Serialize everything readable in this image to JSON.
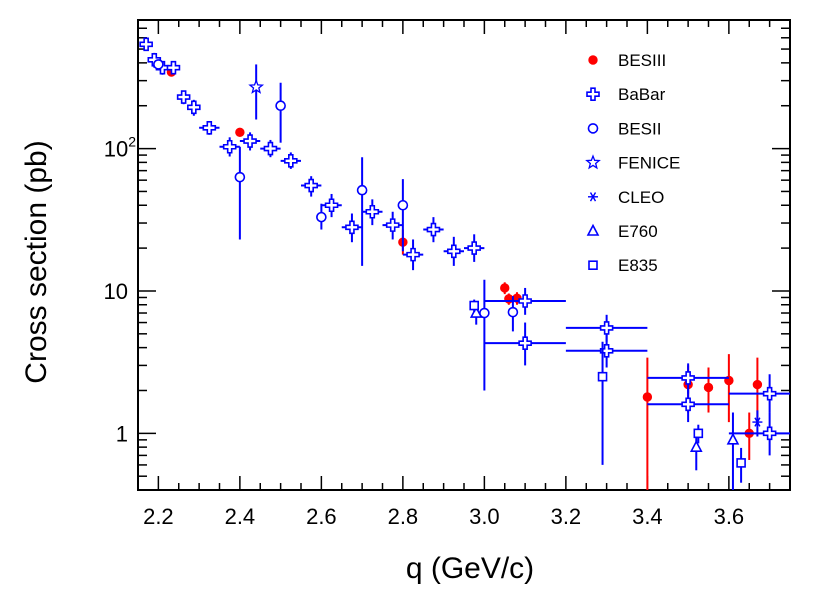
{
  "chart_data": {
    "type": "scatter",
    "title": "",
    "xlabel": "q (GeV/c)",
    "ylabel": "Cross section (pb)",
    "xlim": [
      2.15,
      3.75
    ],
    "ylim": [
      0.4,
      800
    ],
    "yscale": "log",
    "grid": false,
    "legend_position": "top-right",
    "x_ticks": [
      {
        "value": 2.2,
        "label": "2.2"
      },
      {
        "value": 2.4,
        "label": "2.4"
      },
      {
        "value": 2.6,
        "label": "2.6"
      },
      {
        "value": 2.8,
        "label": "2.8"
      },
      {
        "value": 3.0,
        "label": "3.0"
      },
      {
        "value": 3.2,
        "label": "3.2"
      },
      {
        "value": 3.4,
        "label": "3.4"
      },
      {
        "value": 3.6,
        "label": "3.6"
      }
    ],
    "y_ticks": [
      {
        "value": 1,
        "label": "1",
        "sup": ""
      },
      {
        "value": 10,
        "label": "10",
        "sup": ""
      },
      {
        "value": 100,
        "label": "10",
        "sup": "2"
      }
    ],
    "series": [
      {
        "name": "BESIII",
        "marker": "filled-circle",
        "color": "#ff0000",
        "points": [
          {
            "x": 2.232,
            "y": 345,
            "ylo": 330,
            "yhi": 360
          },
          {
            "x": 2.4,
            "y": 130,
            "ylo": 123,
            "yhi": 137
          },
          {
            "x": 2.8,
            "y": 22,
            "ylo": 18,
            "yhi": 27
          },
          {
            "x": 3.05,
            "y": 10.5,
            "ylo": 9.5,
            "yhi": 11.5
          },
          {
            "x": 3.06,
            "y": 8.8,
            "ylo": 8.0,
            "yhi": 9.6
          },
          {
            "x": 3.08,
            "y": 8.9,
            "ylo": 8.0,
            "yhi": 9.8
          },
          {
            "x": 3.4,
            "y": 1.8,
            "ylo": 0.4,
            "yhi": 3.4
          },
          {
            "x": 3.5,
            "y": 2.2,
            "ylo": 1.4,
            "yhi": 3.0
          },
          {
            "x": 3.55,
            "y": 2.1,
            "ylo": 1.4,
            "yhi": 2.9
          },
          {
            "x": 3.6,
            "y": 2.35,
            "ylo": 1.2,
            "yhi": 3.6
          },
          {
            "x": 3.65,
            "y": 1.0,
            "ylo": 0.65,
            "yhi": 1.4
          },
          {
            "x": 3.67,
            "y": 2.2,
            "ylo": 1.2,
            "yhi": 3.4
          }
        ]
      },
      {
        "name": "BaBar",
        "marker": "open-cross",
        "color": "#0000ff",
        "points": [
          {
            "x": 2.17,
            "y": 540,
            "xlo": 2.16,
            "xhi": 2.18,
            "ylo": 500,
            "yhi": 580
          },
          {
            "x": 2.19,
            "y": 420,
            "xlo": 2.18,
            "xhi": 2.2,
            "ylo": 370,
            "yhi": 470
          },
          {
            "x": 2.21,
            "y": 370,
            "xlo": 2.2,
            "xhi": 2.22,
            "ylo": 330,
            "yhi": 410
          },
          {
            "x": 2.237,
            "y": 370,
            "xlo": 2.225,
            "xhi": 2.25,
            "ylo": 340,
            "yhi": 400
          },
          {
            "x": 2.262,
            "y": 230,
            "xlo": 2.25,
            "xhi": 2.275,
            "ylo": 205,
            "yhi": 255
          },
          {
            "x": 2.287,
            "y": 195,
            "xlo": 2.275,
            "xhi": 2.3,
            "ylo": 170,
            "yhi": 220
          },
          {
            "x": 2.325,
            "y": 140,
            "xlo": 2.3,
            "xhi": 2.35,
            "ylo": 125,
            "yhi": 155
          },
          {
            "x": 2.375,
            "y": 103,
            "xlo": 2.35,
            "xhi": 2.4,
            "ylo": 88,
            "yhi": 120
          },
          {
            "x": 2.425,
            "y": 113,
            "xlo": 2.4,
            "xhi": 2.45,
            "ylo": 97,
            "yhi": 130
          },
          {
            "x": 2.475,
            "y": 100,
            "xlo": 2.45,
            "xhi": 2.5,
            "ylo": 87,
            "yhi": 115
          },
          {
            "x": 2.525,
            "y": 82,
            "xlo": 2.5,
            "xhi": 2.55,
            "ylo": 72,
            "yhi": 94
          },
          {
            "x": 2.575,
            "y": 55,
            "xlo": 2.55,
            "xhi": 2.6,
            "ylo": 46,
            "yhi": 64
          },
          {
            "x": 2.625,
            "y": 40,
            "xlo": 2.6,
            "xhi": 2.65,
            "ylo": 33,
            "yhi": 48
          },
          {
            "x": 2.675,
            "y": 28,
            "xlo": 2.65,
            "xhi": 2.7,
            "ylo": 22,
            "yhi": 35
          },
          {
            "x": 2.725,
            "y": 36,
            "xlo": 2.7,
            "xhi": 2.75,
            "ylo": 29,
            "yhi": 44
          },
          {
            "x": 2.775,
            "y": 29,
            "xlo": 2.75,
            "xhi": 2.8,
            "ylo": 23,
            "yhi": 36
          },
          {
            "x": 2.825,
            "y": 18,
            "xlo": 2.8,
            "xhi": 2.85,
            "ylo": 14,
            "yhi": 23
          },
          {
            "x": 2.875,
            "y": 27,
            "xlo": 2.85,
            "xhi": 2.9,
            "ylo": 22,
            "yhi": 33
          },
          {
            "x": 2.925,
            "y": 19,
            "xlo": 2.9,
            "xhi": 2.95,
            "ylo": 15,
            "yhi": 24
          },
          {
            "x": 2.975,
            "y": 20,
            "xlo": 2.95,
            "xhi": 3.0,
            "ylo": 16,
            "yhi": 25
          },
          {
            "x": 3.1,
            "y": 8.5,
            "xlo": 3.0,
            "xhi": 3.2,
            "ylo": 6.8,
            "yhi": 10.5
          },
          {
            "x": 3.1,
            "y": 4.3,
            "xlo": 3.0,
            "xhi": 3.2,
            "ylo": 3.0,
            "yhi": 6.0
          },
          {
            "x": 3.3,
            "y": 5.5,
            "xlo": 3.2,
            "xhi": 3.4,
            "ylo": 4.4,
            "yhi": 6.8
          },
          {
            "x": 3.3,
            "y": 3.8,
            "xlo": 3.2,
            "xhi": 3.4,
            "ylo": 2.9,
            "yhi": 4.9
          },
          {
            "x": 3.5,
            "y": 2.45,
            "xlo": 3.4,
            "xhi": 3.6,
            "ylo": 1.9,
            "yhi": 3.1
          },
          {
            "x": 3.5,
            "y": 1.6,
            "xlo": 3.4,
            "xhi": 3.6,
            "ylo": 1.2,
            "yhi": 2.1
          },
          {
            "x": 3.7,
            "y": 1.9,
            "xlo": 3.6,
            "xhi": 3.8,
            "ylo": 1.4,
            "yhi": 2.6
          },
          {
            "x": 3.7,
            "y": 1.0,
            "xlo": 3.6,
            "xhi": 3.8,
            "ylo": 0.7,
            "yhi": 1.4
          }
        ]
      },
      {
        "name": "BESII",
        "marker": "open-circle",
        "color": "#0000ff",
        "points": [
          {
            "x": 2.2,
            "y": 390,
            "ylo": 360,
            "yhi": 420
          },
          {
            "x": 2.4,
            "y": 63,
            "ylo": 23,
            "yhi": 103
          },
          {
            "x": 2.5,
            "y": 200,
            "ylo": 110,
            "yhi": 290
          },
          {
            "x": 2.6,
            "y": 33,
            "ylo": 27,
            "yhi": 41
          },
          {
            "x": 2.7,
            "y": 51,
            "ylo": 15,
            "yhi": 87
          },
          {
            "x": 2.8,
            "y": 40,
            "ylo": 19,
            "yhi": 61
          },
          {
            "x": 3.0,
            "y": 7,
            "ylo": 2,
            "yhi": 12
          },
          {
            "x": 3.07,
            "y": 7.1,
            "ylo": 5.2,
            "yhi": 9.2
          }
        ]
      },
      {
        "name": "FENICE",
        "marker": "open-star",
        "color": "#0000ff",
        "points": [
          {
            "x": 2.44,
            "y": 270,
            "ylo": 160,
            "yhi": 390
          }
        ]
      },
      {
        "name": "CLEO",
        "marker": "asterisk",
        "color": "#0000ff",
        "points": [
          {
            "x": 3.67,
            "y": 1.2,
            "ylo": 0.95,
            "yhi": 1.45
          }
        ]
      },
      {
        "name": "E760",
        "marker": "open-triangle",
        "color": "#0000ff",
        "points": [
          {
            "x": 2.98,
            "y": 7.0,
            "ylo": 5.8,
            "yhi": 8.2
          },
          {
            "x": 3.52,
            "y": 0.8,
            "ylo": 0.55,
            "yhi": 1.05
          },
          {
            "x": 3.61,
            "y": 0.9,
            "ylo": 0.4,
            "yhi": 1.4
          }
        ]
      },
      {
        "name": "E835",
        "marker": "open-square",
        "color": "#0000ff",
        "points": [
          {
            "x": 2.975,
            "y": 7.9,
            "ylo": 7.1,
            "yhi": 8.7
          },
          {
            "x": 3.29,
            "y": 2.5,
            "ylo": 0.6,
            "yhi": 4.4
          },
          {
            "x": 3.525,
            "y": 1.0,
            "ylo": 0.85,
            "yhi": 1.15
          },
          {
            "x": 3.63,
            "y": 0.62,
            "ylo": 0.45,
            "yhi": 0.79
          }
        ]
      }
    ]
  }
}
